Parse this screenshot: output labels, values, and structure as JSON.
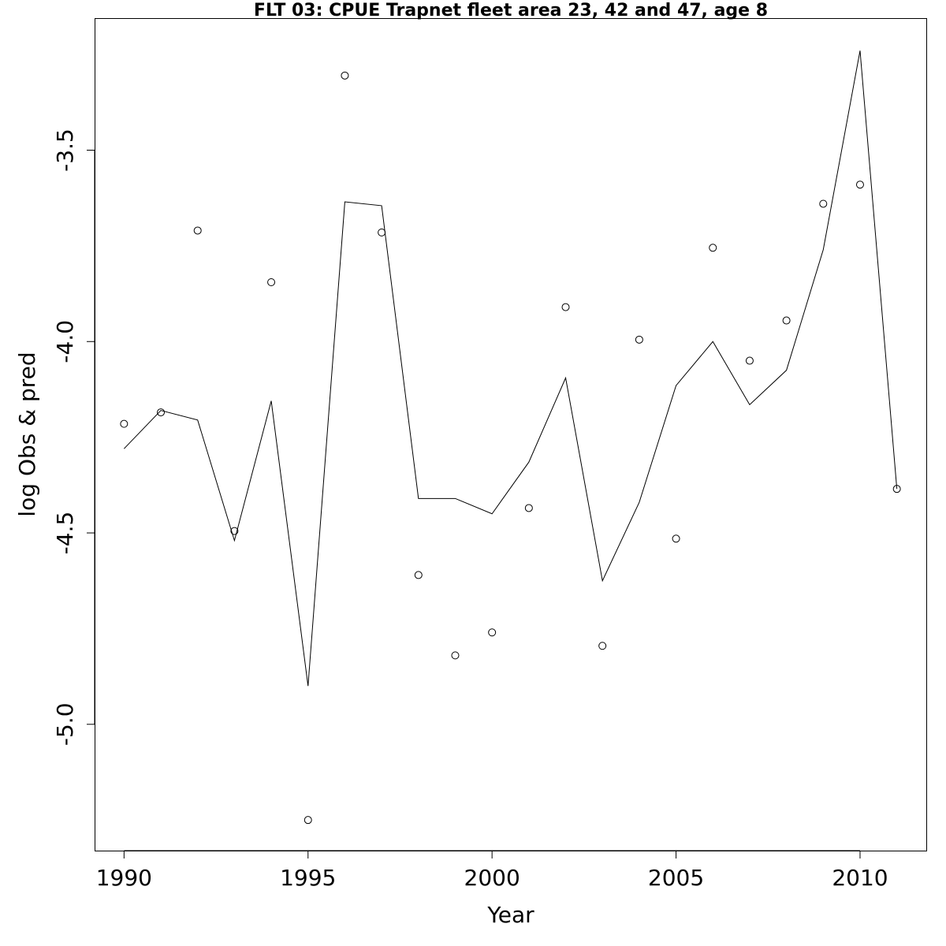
{
  "chart_data": {
    "type": "scatter",
    "title": "FLT 03: CPUE Trapnet fleet area 23, 42 and 47, age 8",
    "xlabel": "Year",
    "ylabel": "log Obs & pred",
    "xlim": [
      1989.2,
      2011.8
    ],
    "ylim": [
      -5.33,
      -3.155
    ],
    "x_ticks": [
      1990,
      1995,
      2000,
      2005,
      2010
    ],
    "x_tick_labels": [
      "1990",
      "1995",
      "2000",
      "2005",
      "2010"
    ],
    "y_ticks": [
      -5.0,
      -4.5,
      -4.0,
      -3.5
    ],
    "y_tick_labels": [
      "-5.0",
      "-4.5",
      "-4.0",
      "-3.5"
    ],
    "grid": false,
    "x": [
      1990,
      1991,
      1992,
      1993,
      1994,
      1995,
      1996,
      1997,
      1998,
      1999,
      2000,
      2001,
      2002,
      2003,
      2004,
      2005,
      2006,
      2007,
      2008,
      2009,
      2010,
      2011
    ],
    "series": [
      {
        "name": "Obs",
        "style": "points",
        "values": [
          -4.215,
          -4.185,
          -3.71,
          -4.495,
          -3.845,
          -5.25,
          -3.305,
          -3.715,
          -4.61,
          -4.82,
          -4.76,
          -4.435,
          -3.91,
          -4.795,
          -3.995,
          -4.515,
          -3.755,
          -4.05,
          -3.945,
          -3.64,
          -3.59,
          -4.385
        ]
      },
      {
        "name": "pred",
        "style": "line",
        "values": [
          -4.28,
          -4.18,
          -4.205,
          -4.52,
          -4.155,
          -4.9,
          -3.635,
          -3.645,
          -4.41,
          -4.41,
          -4.45,
          -4.315,
          -4.095,
          -4.625,
          -4.42,
          -4.115,
          -4.0,
          -4.165,
          -4.075,
          -3.76,
          -3.24,
          -4.385
        ]
      }
    ],
    "colors": {
      "axis": "#000000",
      "line": "#000000",
      "points": "#000000",
      "background": "#ffffff"
    }
  }
}
